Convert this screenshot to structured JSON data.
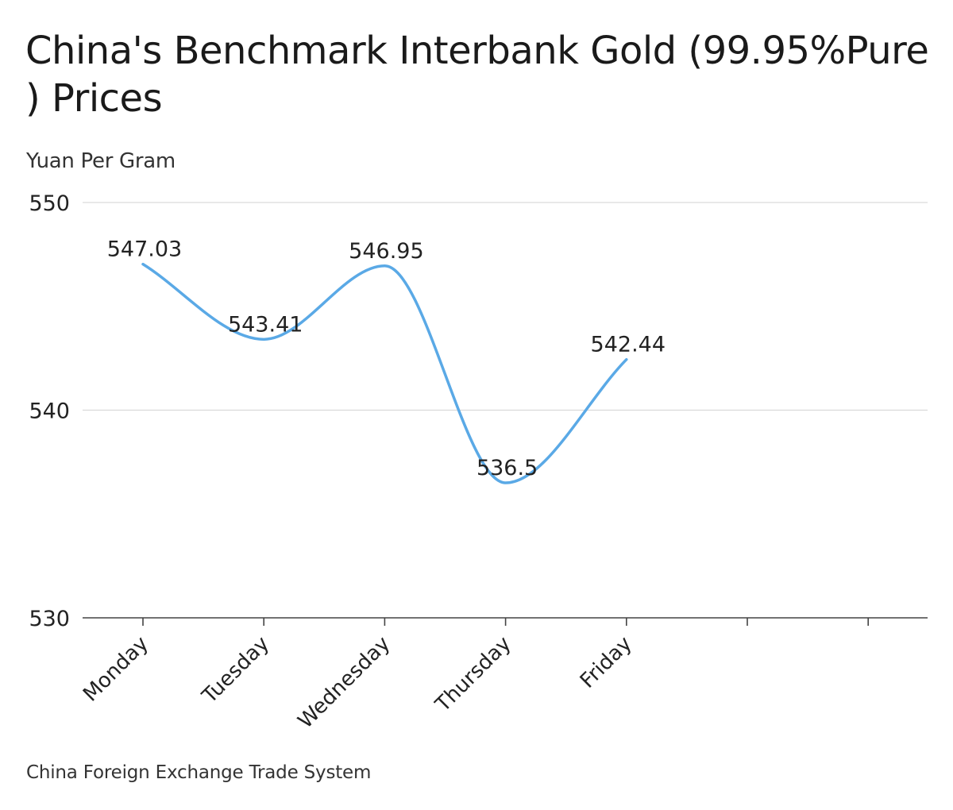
{
  "chart_data": {
    "type": "line",
    "title_lines": [
      "China's Benchmark Interbank Gold (99.95%Pure",
      ") Prices"
    ],
    "ylabel": "Yuan Per Gram",
    "source": "China Foreign Exchange Trade System",
    "categories": [
      "Monday",
      "Tuesday",
      "Wednesday",
      "Thursday",
      "Friday"
    ],
    "series": [
      {
        "values": [
          547.03,
          543.41,
          546.95,
          536.5,
          542.44
        ],
        "data_labels": [
          "547.03",
          "543.41",
          "546.95",
          "536.5",
          "542.44"
        ],
        "color": "#5aa9e6"
      }
    ],
    "ylim": [
      530,
      550
    ],
    "yticks": [
      530,
      540,
      550
    ],
    "x_slot_count": 7,
    "grid": true,
    "line_style": "smooth"
  }
}
